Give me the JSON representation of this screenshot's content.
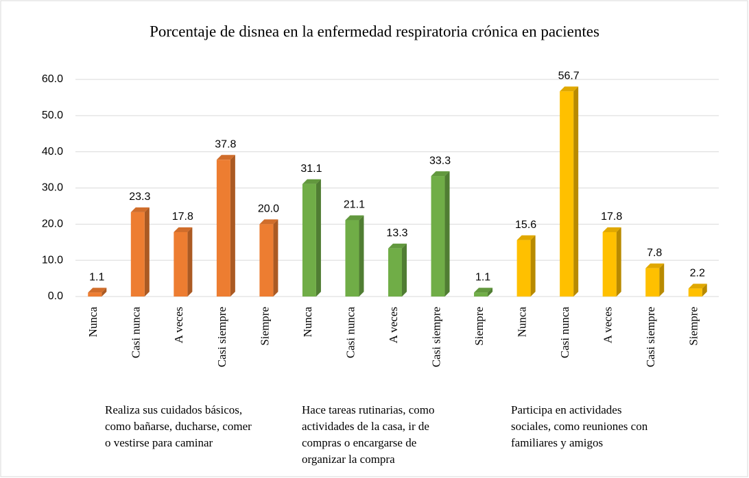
{
  "chart_data": {
    "type": "bar",
    "title": "Porcentaje de disnea en la enfermedad respiratoria crónica en pacientes",
    "ylim": [
      0,
      60
    ],
    "yticks": [
      {
        "value": 0,
        "label": "0.0"
      },
      {
        "value": 10,
        "label": "10.0"
      },
      {
        "value": 20,
        "label": "20.0"
      },
      {
        "value": 30,
        "label": "30.0"
      },
      {
        "value": 40,
        "label": "40.0"
      },
      {
        "value": 50,
        "label": "50.0"
      },
      {
        "value": 60,
        "label": "60.0"
      }
    ],
    "grid": true,
    "groups": [
      {
        "label_lines": [
          "Realiza sus cuidados básicos,",
          "como bañarse, ducharse, comer",
          "o vestirse para caminar"
        ],
        "color": "#ED7D31",
        "categories": [
          "Nunca",
          "Casi nunca",
          "A veces",
          "Casi siempre",
          "Siempre"
        ],
        "values": [
          1.1,
          23.3,
          17.8,
          37.8,
          20
        ],
        "value_labels": [
          "1.1",
          "23.3",
          "17.8",
          "37.8",
          "20.0"
        ]
      },
      {
        "label_lines": [
          "Hace tareas rutinarias, como",
          "actividades de la casa, ir de",
          "compras o encargarse de",
          "organizar la compra"
        ],
        "color": "#70AD47",
        "categories": [
          "Nunca",
          "Casi nunca",
          "A veces",
          "Casi siempre",
          "Siempre"
        ],
        "values": [
          31.1,
          21.1,
          13.3,
          33.3,
          1.1
        ],
        "value_labels": [
          "31.1",
          "21.1",
          "13.3",
          "33.3",
          "1.1"
        ]
      },
      {
        "label_lines": [
          "Participa en actividades",
          "sociales, como reuniones con",
          "familiares y amigos"
        ],
        "color": "#FFC000",
        "categories": [
          "Nunca",
          "Casi nunca",
          "A veces",
          "Casi siempre",
          "Siempre"
        ],
        "values": [
          15.6,
          56.7,
          17.8,
          7.8,
          2.2
        ],
        "value_labels": [
          "15.6",
          "56.7",
          "17.8",
          "7.8",
          "2.2"
        ]
      }
    ]
  }
}
